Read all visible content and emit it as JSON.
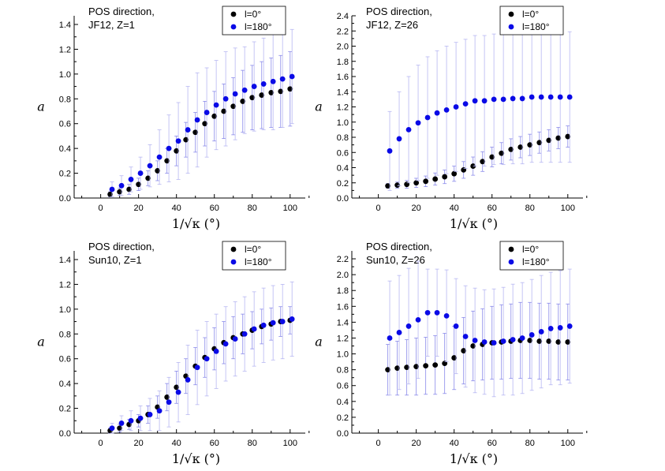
{
  "chart_data": [
    {
      "type": "scatter",
      "annotation": [
        "POS direction,",
        "JF12, Z=1"
      ],
      "xlabel": "1/√κ (°)",
      "ylabel": "a",
      "xlim": [
        -14,
        108
      ],
      "ylim": [
        0,
        1.47
      ],
      "xticks": [
        0,
        20,
        40,
        60,
        80,
        100
      ],
      "xtick_labels": [
        "0",
        "20",
        "40",
        "60",
        "80",
        "100"
      ],
      "yticks": [
        0,
        0.2,
        0.4,
        0.6,
        0.8,
        1.0,
        1.2,
        1.4
      ],
      "ytick_labels": [
        "0.0",
        "0.2",
        "0.4",
        "0.6",
        "0.8",
        "1.0",
        "1.2",
        "1.4"
      ],
      "legend": [
        "l=0°",
        "l=180°"
      ],
      "legend_position": "top-right",
      "series": [
        {
          "color": "#000000",
          "x": [
            5,
            10,
            15,
            20,
            25,
            30,
            35,
            40,
            45,
            50,
            55,
            60,
            65,
            70,
            75,
            80,
            85,
            90,
            95,
            100
          ],
          "y": [
            0.03,
            0.05,
            0.07,
            0.11,
            0.16,
            0.22,
            0.3,
            0.38,
            0.47,
            0.53,
            0.6,
            0.66,
            0.7,
            0.74,
            0.78,
            0.81,
            0.83,
            0.85,
            0.86,
            0.88
          ],
          "err": [
            0.02,
            0.03,
            0.04,
            0.05,
            0.06,
            0.08,
            0.1,
            0.12,
            0.14,
            0.16,
            0.18,
            0.2,
            0.22,
            0.23,
            0.25,
            0.26,
            0.27,
            0.28,
            0.29,
            0.3
          ]
        },
        {
          "color": "#0a0ae6",
          "x": [
            6,
            11,
            16,
            21,
            26,
            31,
            36,
            41,
            46,
            51,
            56,
            61,
            66,
            71,
            76,
            81,
            86,
            91,
            96,
            101
          ],
          "y": [
            0.07,
            0.1,
            0.15,
            0.2,
            0.26,
            0.33,
            0.4,
            0.46,
            0.55,
            0.63,
            0.69,
            0.75,
            0.8,
            0.84,
            0.87,
            0.9,
            0.92,
            0.94,
            0.96,
            0.98
          ],
          "err": [
            0.06,
            0.08,
            0.1,
            0.13,
            0.17,
            0.22,
            0.27,
            0.31,
            0.35,
            0.38,
            0.36,
            0.36,
            0.38,
            0.37,
            0.35,
            0.36,
            0.37,
            0.39,
            0.39,
            0.38
          ]
        }
      ]
    },
    {
      "type": "scatter",
      "annotation": [
        "POS direction,",
        "JF12, Z=26"
      ],
      "xlabel": "1/√κ (°)",
      "ylabel": "a",
      "xlim": [
        -14,
        108
      ],
      "ylim": [
        0,
        2.4
      ],
      "xticks": [
        0,
        20,
        40,
        60,
        80,
        100
      ],
      "xtick_labels": [
        "0",
        "20",
        "40",
        "60",
        "80",
        "100"
      ],
      "yticks": [
        0,
        0.2,
        0.4,
        0.6,
        0.8,
        1.0,
        1.2,
        1.4,
        1.6,
        1.8,
        2.0,
        2.2,
        2.4
      ],
      "ytick_labels": [
        "0.0",
        "0.2",
        "0.4",
        "0.6",
        "0.8",
        "1.0",
        "1.2",
        "1.4",
        "1.6",
        "1.8",
        "2.0",
        "2.2",
        "2.4"
      ],
      "legend": [
        "l=0°",
        "l=180°"
      ],
      "legend_position": "top-right",
      "series": [
        {
          "color": "#000000",
          "x": [
            5,
            10,
            15,
            20,
            25,
            30,
            35,
            40,
            45,
            50,
            55,
            60,
            65,
            70,
            75,
            80,
            85,
            90,
            95,
            100
          ],
          "y": [
            0.16,
            0.17,
            0.18,
            0.2,
            0.22,
            0.25,
            0.28,
            0.32,
            0.37,
            0.42,
            0.48,
            0.54,
            0.59,
            0.64,
            0.67,
            0.7,
            0.73,
            0.76,
            0.79,
            0.81
          ],
          "err": [
            0.03,
            0.04,
            0.05,
            0.06,
            0.07,
            0.08,
            0.09,
            0.1,
            0.11,
            0.12,
            0.13,
            0.13,
            0.14,
            0.14,
            0.14,
            0.14,
            0.14,
            0.14,
            0.14,
            0.14
          ]
        },
        {
          "color": "#0a0ae6",
          "x": [
            6,
            11,
            16,
            21,
            26,
            31,
            36,
            41,
            46,
            51,
            56,
            61,
            66,
            71,
            76,
            81,
            86,
            91,
            96,
            101
          ],
          "y": [
            0.62,
            0.78,
            0.9,
            0.99,
            1.06,
            1.12,
            1.16,
            1.2,
            1.24,
            1.28,
            1.28,
            1.3,
            1.3,
            1.31,
            1.31,
            1.33,
            1.33,
            1.33,
            1.33,
            1.33
          ],
          "err": [
            0.52,
            0.62,
            0.7,
            0.76,
            0.8,
            0.82,
            0.84,
            0.85,
            0.85,
            0.86,
            0.86,
            0.86,
            0.86,
            0.86,
            0.86,
            0.86,
            0.86,
            0.86,
            0.86,
            0.86
          ]
        }
      ]
    },
    {
      "type": "scatter",
      "annotation": [
        "POS direction,",
        "Sun10, Z=1"
      ],
      "xlabel": "1/√κ (°)",
      "ylabel": "a",
      "xlim": [
        -14,
        108
      ],
      "ylim": [
        0,
        1.47
      ],
      "xticks": [
        0,
        20,
        40,
        60,
        80,
        100
      ],
      "xtick_labels": [
        "0",
        "20",
        "40",
        "60",
        "80",
        "100"
      ],
      "yticks": [
        0,
        0.2,
        0.4,
        0.6,
        0.8,
        1.0,
        1.2,
        1.4
      ],
      "ytick_labels": [
        "0.0",
        "0.2",
        "0.4",
        "0.6",
        "0.8",
        "1.0",
        "1.2",
        "1.4"
      ],
      "legend": [
        "l=0°",
        "l=180°"
      ],
      "legend_position": "top-right",
      "series": [
        {
          "color": "#000000",
          "x": [
            5,
            10,
            15,
            20,
            25,
            30,
            35,
            40,
            45,
            50,
            55,
            60,
            65,
            70,
            75,
            80,
            85,
            90,
            95,
            100
          ],
          "y": [
            0.02,
            0.04,
            0.07,
            0.1,
            0.15,
            0.21,
            0.29,
            0.37,
            0.46,
            0.54,
            0.61,
            0.68,
            0.73,
            0.77,
            0.8,
            0.83,
            0.86,
            0.88,
            0.9,
            0.91
          ],
          "err": [
            0.02,
            0.03,
            0.04,
            0.05,
            0.07,
            0.09,
            0.11,
            0.13,
            0.14,
            0.15,
            0.16,
            0.17,
            0.17,
            0.17,
            0.16,
            0.15,
            0.14,
            0.13,
            0.12,
            0.11
          ]
        },
        {
          "color": "#0a0ae6",
          "x": [
            6,
            11,
            16,
            21,
            26,
            31,
            36,
            41,
            46,
            51,
            56,
            61,
            66,
            71,
            76,
            81,
            86,
            91,
            96,
            101
          ],
          "y": [
            0.04,
            0.08,
            0.1,
            0.12,
            0.15,
            0.18,
            0.25,
            0.33,
            0.43,
            0.53,
            0.6,
            0.66,
            0.72,
            0.76,
            0.8,
            0.84,
            0.87,
            0.89,
            0.9,
            0.92
          ],
          "err": [
            0.04,
            0.06,
            0.08,
            0.1,
            0.13,
            0.16,
            0.2,
            0.24,
            0.28,
            0.3,
            0.3,
            0.3,
            0.3,
            0.3,
            0.3,
            0.3,
            0.3,
            0.3,
            0.3,
            0.3
          ]
        }
      ]
    },
    {
      "type": "scatter",
      "annotation": [
        "POS direction,",
        "Sun10, Z=26"
      ],
      "xlabel": "1/√κ (°)",
      "ylabel": "a",
      "xlim": [
        -14,
        108
      ],
      "ylim": [
        0,
        2.3
      ],
      "xticks": [
        0,
        20,
        40,
        60,
        80,
        100
      ],
      "xtick_labels": [
        "0",
        "20",
        "40",
        "60",
        "80",
        "100"
      ],
      "yticks": [
        0,
        0.2,
        0.4,
        0.6,
        0.8,
        1.0,
        1.2,
        1.4,
        1.6,
        1.8,
        2.0,
        2.2
      ],
      "ytick_labels": [
        "0.0",
        "0.2",
        "0.4",
        "0.6",
        "0.8",
        "1.0",
        "1.2",
        "1.4",
        "1.6",
        "1.8",
        "2.0",
        "2.2"
      ],
      "legend": [
        "l=0°",
        "l=180°"
      ],
      "legend_position": "top-right",
      "series": [
        {
          "color": "#000000",
          "x": [
            5,
            10,
            15,
            20,
            25,
            30,
            35,
            40,
            45,
            50,
            55,
            60,
            65,
            70,
            75,
            80,
            85,
            90,
            95,
            100
          ],
          "y": [
            0.8,
            0.82,
            0.83,
            0.84,
            0.85,
            0.86,
            0.88,
            0.95,
            1.04,
            1.1,
            1.12,
            1.14,
            1.15,
            1.16,
            1.17,
            1.17,
            1.16,
            1.16,
            1.15,
            1.15
          ],
          "err": [
            0.32,
            0.34,
            0.35,
            0.36,
            0.36,
            0.37,
            0.38,
            0.4,
            0.42,
            0.44,
            0.45,
            0.46,
            0.47,
            0.47,
            0.48,
            0.48,
            0.48,
            0.48,
            0.48,
            0.48
          ]
        },
        {
          "color": "#0a0ae6",
          "x": [
            6,
            11,
            16,
            21,
            26,
            31,
            36,
            41,
            46,
            51,
            56,
            61,
            66,
            71,
            76,
            81,
            86,
            91,
            96,
            101
          ],
          "y": [
            1.2,
            1.27,
            1.35,
            1.43,
            1.52,
            1.52,
            1.48,
            1.35,
            1.22,
            1.17,
            1.15,
            1.14,
            1.16,
            1.18,
            1.2,
            1.24,
            1.28,
            1.32,
            1.33,
            1.35
          ],
          "err": [
            0.72,
            0.72,
            0.73,
            0.74,
            0.55,
            0.55,
            0.58,
            0.6,
            0.64,
            0.66,
            0.66,
            0.68,
            0.68,
            0.7,
            0.7,
            0.7,
            0.71,
            0.71,
            0.72,
            0.72
          ]
        }
      ]
    }
  ]
}
